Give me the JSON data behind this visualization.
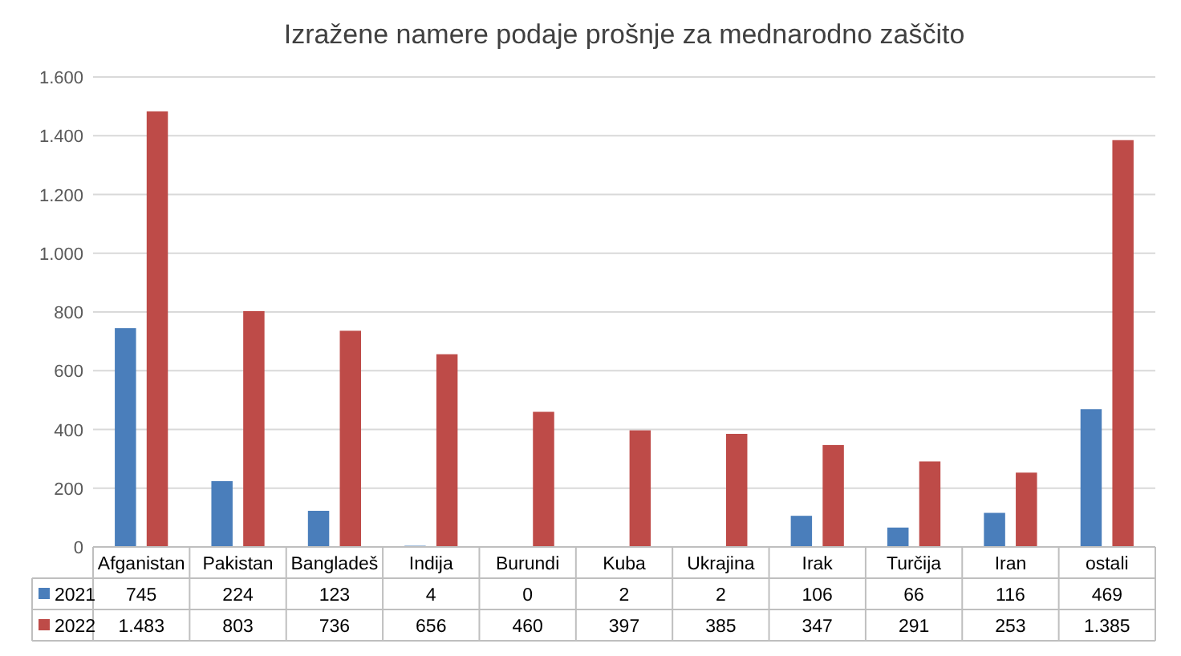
{
  "chart_data": {
    "type": "bar",
    "title": "Izražene namere podaje prošnje za mednarodno zaščito",
    "categories": [
      "Afganistan",
      "Pakistan",
      "Bangladeš",
      "Indija",
      "Burundi",
      "Kuba",
      "Ukrajina",
      "Irak",
      "Turčija",
      "Iran",
      "ostali"
    ],
    "series": [
      {
        "name": "2021",
        "color": "#4a7ebb",
        "values": [
          745,
          224,
          123,
          4,
          0,
          2,
          2,
          106,
          66,
          116,
          469
        ],
        "value_labels": [
          "745",
          "224",
          "123",
          "4",
          "0",
          "2",
          "2",
          "106",
          "66",
          "116",
          "469"
        ]
      },
      {
        "name": "2022",
        "color": "#be4b48",
        "values": [
          1483,
          803,
          736,
          656,
          460,
          397,
          385,
          347,
          291,
          253,
          1385
        ],
        "value_labels": [
          "1.483",
          "803",
          "736",
          "656",
          "460",
          "397",
          "385",
          "347",
          "291",
          "253",
          "1.385"
        ]
      }
    ],
    "ylim": [
      0,
      1600
    ],
    "yticks": [
      0,
      200,
      400,
      600,
      800,
      {
        "value": 1000,
        "label": "1.000"
      },
      {
        "value": 1200,
        "label": "1.200"
      },
      {
        "value": 1400,
        "label": "1.400"
      },
      {
        "value": 1600,
        "label": "1.600"
      }
    ],
    "grid": "y",
    "legend": "bottom"
  }
}
